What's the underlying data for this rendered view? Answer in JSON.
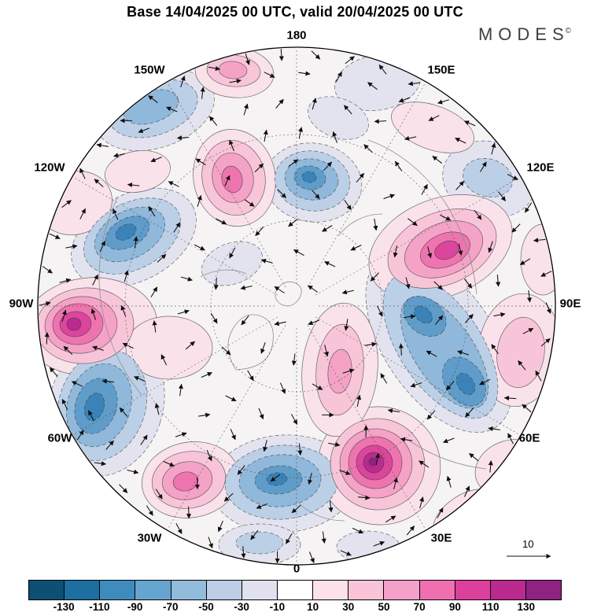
{
  "header": {
    "title": "Base 14/04/2025 00 UTC, valid 20/04/2025 00 UTC",
    "logo_text": "MODES",
    "logo_mark": "©"
  },
  "map": {
    "meridian_labels": [
      "180",
      "150W",
      "120W",
      "90W",
      "60W",
      "30W",
      "0",
      "30E",
      "60E",
      "90E",
      "120E",
      "150E"
    ],
    "reference_vector_label": "10"
  },
  "chart_data": {
    "type": "heatmap",
    "chart_kind": "north-polar stereographic filled-contour anomaly map with wind vectors",
    "projection": "north-polar-stereographic",
    "title": "Base 14/04/2025 00 UTC, valid 20/04/2025 00 UTC",
    "source": "MODES",
    "meridian_labels": [
      "180",
      "150W",
      "120W",
      "90W",
      "60W",
      "30W",
      "0",
      "30E",
      "60E",
      "90E",
      "120E",
      "150E"
    ],
    "contour_interval": 20,
    "levels": [
      -130,
      -110,
      -90,
      -70,
      -50,
      -30,
      -10,
      10,
      30,
      50,
      70,
      90,
      110,
      130
    ],
    "colorbar": {
      "orientation": "horizontal",
      "tick_labels": [
        "-130",
        "-110",
        "-90",
        "-70",
        "-50",
        "-30",
        "-10",
        "10",
        "30",
        "50",
        "70",
        "90",
        "110",
        "130"
      ],
      "colors": [
        "#0d4f75",
        "#1c6fa0",
        "#3d8cbd",
        "#66a5cf",
        "#92bcdc",
        "#bccee6",
        "#e0e0ee",
        "#ffffff",
        "#fce1e9",
        "#f9c4d8",
        "#f5a0c8",
        "#ef6fb0",
        "#dd3f9d",
        "#bb2a8e",
        "#8e2384"
      ]
    },
    "reference_vector": {
      "label": "10",
      "value": 10
    },
    "anomaly_centers": [
      {
        "sector": "150W polar (top-left)",
        "sign": "negative",
        "peak_value": -50
      },
      {
        "sector": "180 outer rim (top)",
        "sign": "positive",
        "peak_value": 50
      },
      {
        "sector": "175E mid-latitude (upper-middle)",
        "sign": "negative",
        "peak_value": -110
      },
      {
        "sector": "165W mid-latitude (upper-center)",
        "sign": "positive",
        "peak_value": 90
      },
      {
        "sector": "115W mid-latitude (left-upper)",
        "sign": "negative",
        "peak_value": -110
      },
      {
        "sector": "95W outer (left)",
        "sign": "positive",
        "peak_value": 120
      },
      {
        "sector": "65W mid-latitude (lower-left)",
        "sign": "negative",
        "peak_value": -110
      },
      {
        "sector": "35W outer (bottom-left)",
        "sign": "positive",
        "peak_value": 70
      },
      {
        "sector": "5W mid-latitude (bottom-center)",
        "sign": "negative",
        "peak_value": -90
      },
      {
        "sector": "30E mid-latitude (bottom-right)",
        "sign": "positive",
        "peak_value": 135
      },
      {
        "sector": "60E-90E elongated band (right)",
        "sign": "negative",
        "peak_value": -110
      },
      {
        "sector": "110E mid-latitude (right-upper)",
        "sign": "positive",
        "peak_value": 110
      }
    ]
  }
}
